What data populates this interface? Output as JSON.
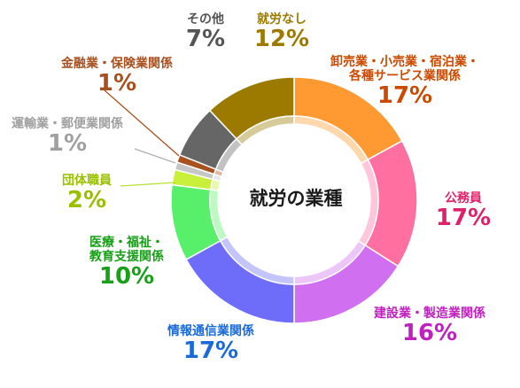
{
  "chart_data": {
    "type": "pie",
    "title": "就労の業種",
    "slices": [
      {
        "label": "卸売業・小売業・宿泊業・各種サービス業関係",
        "lines": [
          "卸売業・小売業・宿泊業・",
          "各種サービス業関係"
        ],
        "pct_text": "17%",
        "value": 17,
        "color": "#ff9a33",
        "label_color": "#cc4a00"
      },
      {
        "label": "公務員",
        "lines": [
          "公務員"
        ],
        "pct_text": "17%",
        "value": 17,
        "color": "#ff6fa0",
        "label_color": "#e0206a"
      },
      {
        "label": "建設業・製造業関係",
        "lines": [
          "建設業・製造業関係"
        ],
        "pct_text": "16%",
        "value": 16,
        "color": "#d070f0",
        "label_color": "#c020c0"
      },
      {
        "label": "情報通信業関係",
        "lines": [
          "情報通信業関係"
        ],
        "pct_text": "17%",
        "value": 17,
        "color": "#6d6dfa",
        "label_color": "#1a6ad8"
      },
      {
        "label": "医療・福祉・教育支援関係",
        "lines": [
          "医療・福祉・",
          "教育支援関係"
        ],
        "pct_text": "10%",
        "value": 10,
        "color": "#58f06a",
        "label_color": "#18a018"
      },
      {
        "label": "団体職員",
        "lines": [
          "団体職員"
        ],
        "pct_text": "2%",
        "value": 2,
        "color": "#c8f03a",
        "label_color": "#98c000"
      },
      {
        "label": "運輸業・郵便業関係",
        "lines": [
          "運輸業・郵便業関係"
        ],
        "pct_text": "1%",
        "value": 1,
        "color": "#c6c6c6",
        "label_color": "#a0a0a0"
      },
      {
        "label": "金融業・保険業関係",
        "lines": [
          "金融業・保険業関係"
        ],
        "pct_text": "1%",
        "value": 1,
        "color": "#a8501e",
        "label_color": "#a8501e"
      },
      {
        "label": "その他",
        "lines": [
          "その他"
        ],
        "pct_text": "7%",
        "value": 7,
        "color": "#666666",
        "label_color": "#555555"
      },
      {
        "label": "就労なし",
        "lines": [
          "就労なし"
        ],
        "pct_text": "12%",
        "value": 12,
        "color": "#9c7a00",
        "label_color": "#9c7a00"
      }
    ]
  }
}
